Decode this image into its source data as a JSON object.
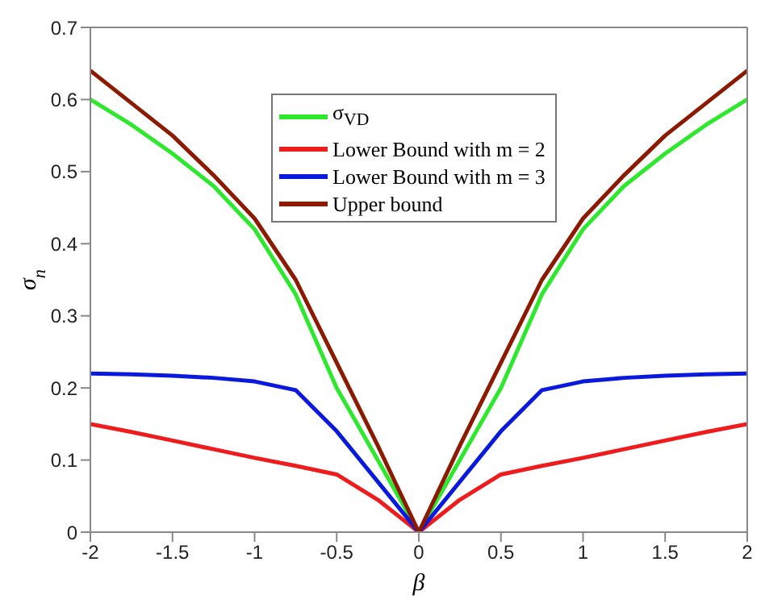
{
  "chart_data": {
    "type": "line",
    "xlabel": "β",
    "ylabel": "σ$_{n}$",
    "x": [
      -2,
      -1.75,
      -1.5,
      -1.25,
      -1,
      -0.75,
      -0.5,
      -0.25,
      0,
      0.25,
      0.5,
      0.75,
      1,
      1.25,
      1.5,
      1.75,
      2
    ],
    "series": [
      {
        "name": "σ$_{VD}$",
        "color": "#2ee82e",
        "values": [
          0.6,
          0.565,
          0.525,
          0.48,
          0.42,
          0.33,
          0.2,
          0.1,
          0,
          0.1,
          0.2,
          0.33,
          0.42,
          0.48,
          0.525,
          0.565,
          0.6
        ]
      },
      {
        "name": "Lower Bound with m = 2",
        "color": "#ee1c1c",
        "values": [
          0.15,
          0.139,
          0.127,
          0.115,
          0.103,
          0.092,
          0.08,
          0.045,
          0,
          0.045,
          0.08,
          0.092,
          0.103,
          0.115,
          0.127,
          0.139,
          0.15
        ]
      },
      {
        "name": "Lower Bound with m = 3",
        "color": "#0a1adc",
        "values": [
          0.22,
          0.219,
          0.217,
          0.214,
          0.209,
          0.197,
          0.14,
          0.07,
          0,
          0.07,
          0.14,
          0.197,
          0.209,
          0.214,
          0.217,
          0.219,
          0.22
        ]
      },
      {
        "name": "Upper bound",
        "color": "#8b1a00",
        "values": [
          0.64,
          0.595,
          0.55,
          0.495,
          0.435,
          0.35,
          0.235,
          0.12,
          0,
          0.12,
          0.235,
          0.35,
          0.435,
          0.495,
          0.55,
          0.595,
          0.64
        ]
      }
    ],
    "xlim": [
      -2,
      2
    ],
    "xticks": [
      -2,
      -1.5,
      -1,
      -0.5,
      0,
      0.5,
      1,
      1.5,
      2
    ],
    "ylim": [
      0,
      0.7
    ],
    "yticks": [
      0,
      0.1,
      0.2,
      0.3,
      0.4,
      0.5,
      0.6,
      0.7
    ],
    "legend": "top",
    "grid": false,
    "marker": "none",
    "line_style": "solid"
  }
}
